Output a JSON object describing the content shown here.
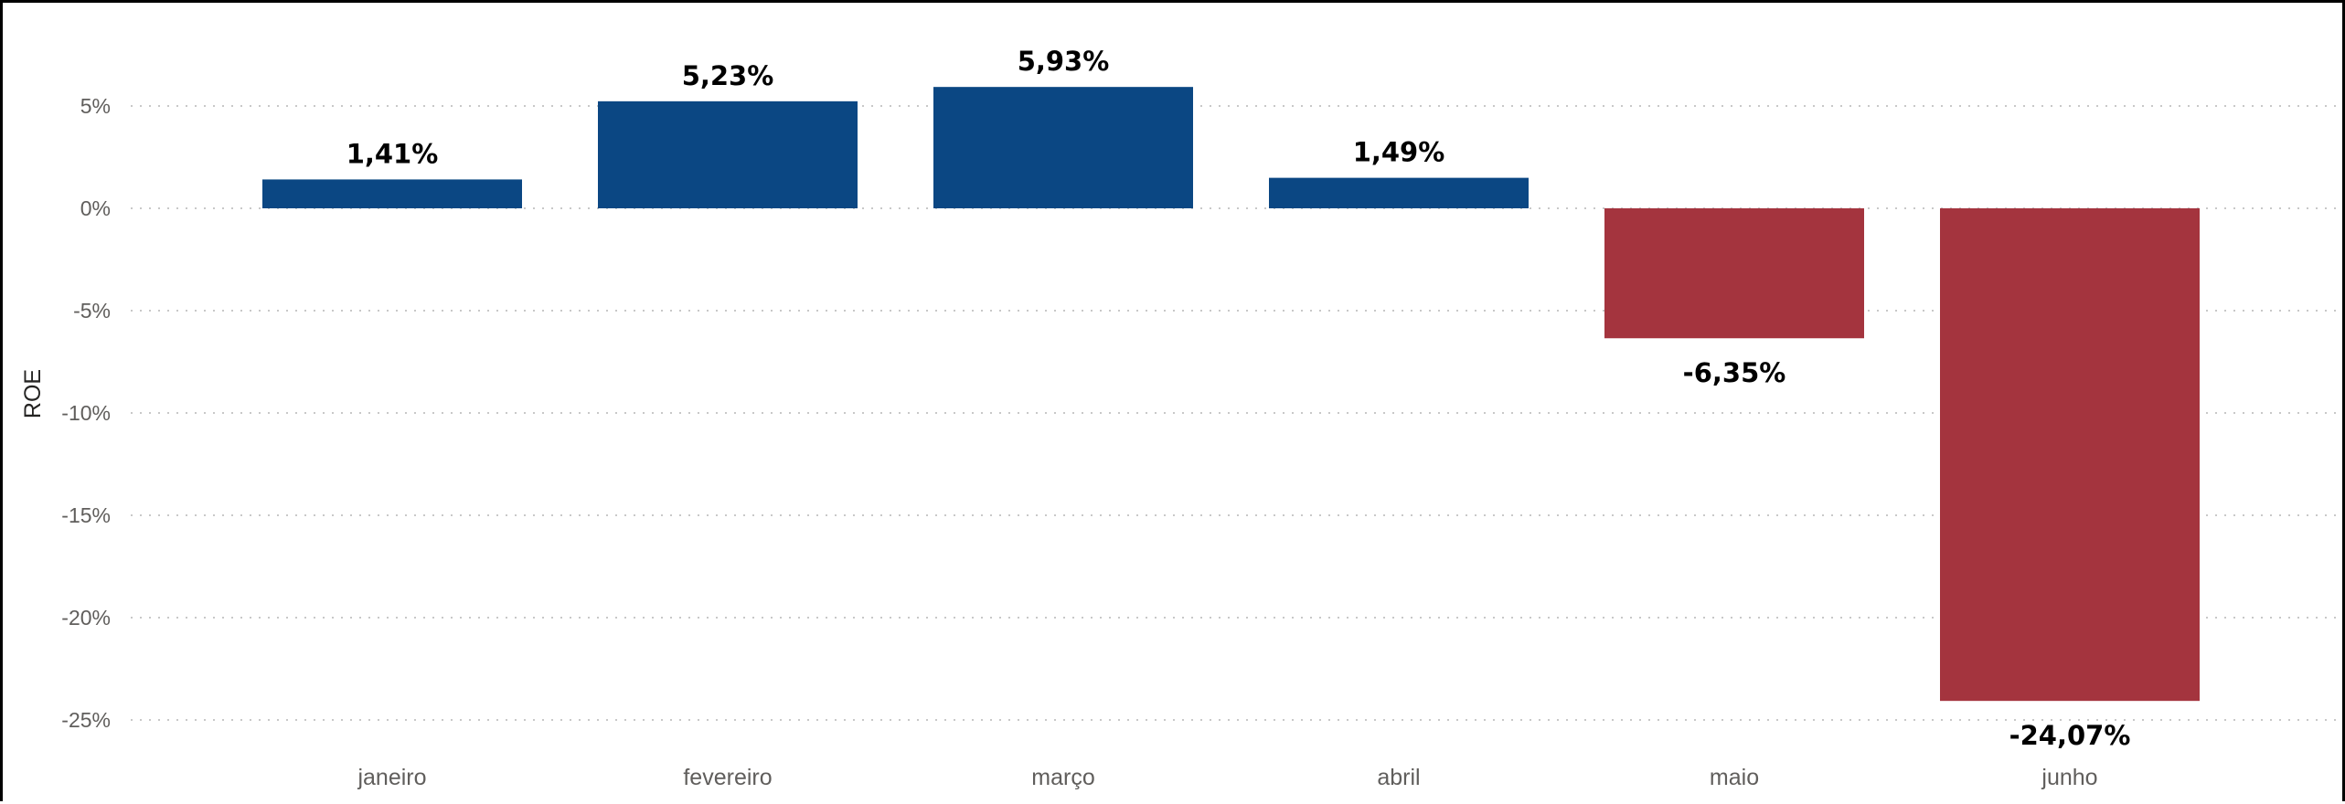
{
  "chart_data": {
    "type": "bar",
    "categories": [
      "janeiro",
      "fevereiro",
      "março",
      "abril",
      "maio",
      "junho"
    ],
    "values": [
      1.41,
      5.23,
      5.93,
      1.49,
      -6.35,
      -24.07
    ],
    "data_labels": [
      "1,41%",
      "5,23%",
      "5,93%",
      "1,49%",
      "-6,35%",
      "-24,07%"
    ],
    "ylabel": "ROE",
    "y_ticks": [
      5,
      0,
      -5,
      -10,
      -15,
      -20,
      -25
    ],
    "y_tick_labels": [
      "5%",
      "0%",
      "-5%",
      "-10%",
      "-15%",
      "-20%",
      "-25%"
    ],
    "ylim": [
      -26,
      8.2
    ],
    "grid": true,
    "colors": {
      "positive": "#0b4783",
      "negative": "#a4343e"
    }
  }
}
